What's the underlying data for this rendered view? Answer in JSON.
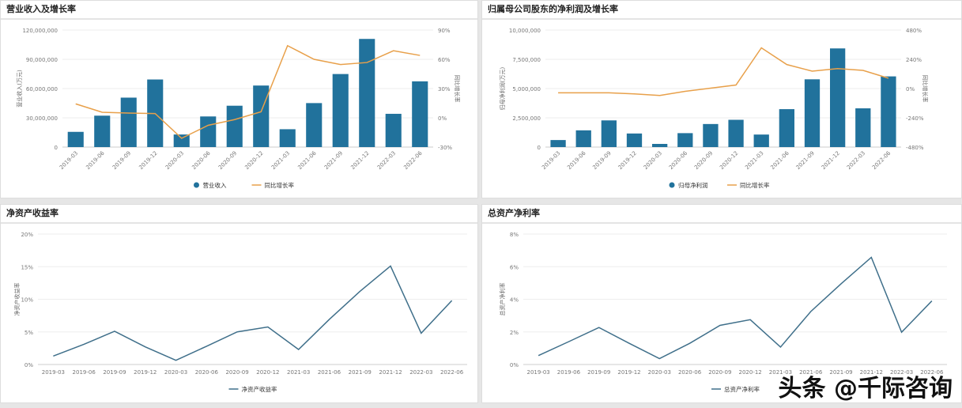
{
  "watermark": "头条 @千际咨询",
  "colors": {
    "bar": "#21729c",
    "growth_line": "#e8a04a",
    "ratio_line": "#3f6f8a"
  },
  "chart_data": [
    {
      "type": "bar",
      "title": "营业收入及增长率",
      "categories": [
        "2019-03",
        "2019-06",
        "2019-09",
        "2019-12",
        "2020-03",
        "2020-06",
        "2020-09",
        "2020-12",
        "2021-03",
        "2021-06",
        "2021-09",
        "2021-12",
        "2022-03",
        "2022-06"
      ],
      "ylabel": "营业收入(万元)",
      "y2label": "同比增长率",
      "ylim": [
        0,
        120000000
      ],
      "yticks": [
        "0",
        "30,000,000",
        "60,000,000",
        "90,000,000",
        "120,000,000"
      ],
      "y2lim": [
        -30,
        90
      ],
      "y2ticks": [
        "-30%",
        "0%",
        "30%",
        "60%",
        "90%"
      ],
      "series": [
        {
          "name": "营业收入",
          "type": "bar",
          "values": [
            15600000,
            32200000,
            50700000,
            69300000,
            12900000,
            31400000,
            42400000,
            63100000,
            18300000,
            45100000,
            74900000,
            110900000,
            34100000,
            67400000
          ]
        },
        {
          "name": "同比增长率",
          "type": "line",
          "axis": "right",
          "values": [
            14.3,
            5.7,
            4.9,
            4.4,
            -21,
            -7.7,
            -1.8,
            6.2,
            74,
            60,
            54.6,
            56.7,
            68.8,
            64
          ]
        }
      ],
      "legend": "bottom"
    },
    {
      "type": "bar",
      "title": "归属母公司股东的净利润及增长率",
      "categories": [
        "2019-03",
        "2019-06",
        "2019-09",
        "2019-12",
        "2020-03",
        "2020-06",
        "2020-09",
        "2020-12",
        "2021-03",
        "2021-06",
        "2021-09",
        "2021-12",
        "2022-03",
        "2022-06"
      ],
      "ylabel": "归母净利润(万元)",
      "y2label": "同比增长率",
      "ylim": [
        0,
        10000000
      ],
      "yticks": [
        "0",
        "2,500,000",
        "5,000,000",
        "7,500,000",
        "10,000,000"
      ],
      "y2lim": [
        -480,
        480
      ],
      "y2ticks": [
        "-480%",
        "-240%",
        "0%",
        "240%",
        "480%"
      ],
      "series": [
        {
          "name": "归母净利润",
          "type": "bar",
          "values": [
            600000,
            1430000,
            2280000,
            1160000,
            270000,
            1190000,
            1970000,
            2330000,
            1070000,
            3240000,
            5790000,
            8430000,
            3310000,
            6040000
          ]
        },
        {
          "name": "同比增长率",
          "type": "line",
          "axis": "right",
          "values": [
            -35,
            -35,
            -35,
            -44,
            -57,
            -23,
            3,
            29,
            334,
            197,
            143,
            164,
            149,
            85
          ]
        }
      ],
      "legend": "bottom"
    },
    {
      "type": "line",
      "title": "净资产收益率",
      "categories": [
        "2019-03",
        "2019-06",
        "2019-09",
        "2019-12",
        "2020-03",
        "2020-06",
        "2020-09",
        "2020-12",
        "2021-03",
        "2021-06",
        "2021-09",
        "2021-12",
        "2022-03",
        "2022-06"
      ],
      "ylabel": "净资产收益率",
      "ylim": [
        0,
        20
      ],
      "yticks": [
        "0%",
        "5%",
        "10%",
        "15%",
        "20%"
      ],
      "series": [
        {
          "name": "净资产收益率",
          "values": [
            1.3,
            3.1,
            5.1,
            2.7,
            0.65,
            2.8,
            5.0,
            5.75,
            2.3,
            6.9,
            11.2,
            15.1,
            4.8,
            9.8
          ]
        }
      ],
      "legend": "bottom"
    },
    {
      "type": "line",
      "title": "总资产净利率",
      "categories": [
        "2019-03",
        "2019-06",
        "2019-09",
        "2019-12",
        "2020-03",
        "2020-06",
        "2020-09",
        "2020-12",
        "2021-03",
        "2021-06",
        "2021-09",
        "2021-12",
        "2022-03",
        "2022-06"
      ],
      "ylabel": "总资产净利率",
      "ylim": [
        0,
        8
      ],
      "yticks": [
        "0%",
        "2%",
        "4%",
        "6%",
        "8%"
      ],
      "series": [
        {
          "name": "总资产净利率",
          "values": [
            0.55,
            1.4,
            2.27,
            1.3,
            0.36,
            1.3,
            2.4,
            2.75,
            1.07,
            3.25,
            4.95,
            6.57,
            1.98,
            3.9
          ]
        }
      ],
      "legend": "bottom"
    }
  ]
}
